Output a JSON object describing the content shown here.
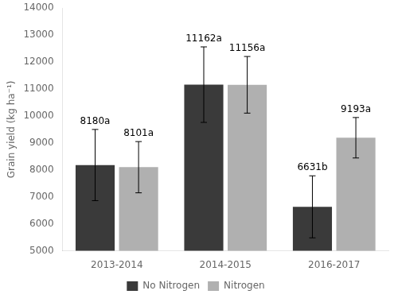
{
  "chart_data": {
    "type": "bar",
    "categories": [
      "2013-2014",
      "2014-2015",
      "2016-2017"
    ],
    "series": [
      {
        "name": "No Nitrogen",
        "color": "#3a3a3a",
        "values": [
          8180,
          11162,
          6631
        ],
        "errors": [
          1320,
          1400,
          1150
        ],
        "value_labels": [
          "8180a",
          "11162a",
          "6631b"
        ]
      },
      {
        "name": "Nitrogen",
        "color": "#b0b0b0",
        "values": [
          8101,
          11156,
          9193
        ],
        "errors": [
          950,
          1050,
          750
        ],
        "value_labels": [
          "8101a",
          "11156a",
          "9193a"
        ]
      }
    ],
    "ylabel": "Grain yield (kg ha⁻¹)",
    "ylim": [
      5000,
      14000
    ],
    "yticks": [
      5000,
      6000,
      7000,
      8000,
      9000,
      10000,
      11000,
      12000,
      13000,
      14000
    ],
    "grid": false,
    "legend": "bottom",
    "data_labels": true
  }
}
